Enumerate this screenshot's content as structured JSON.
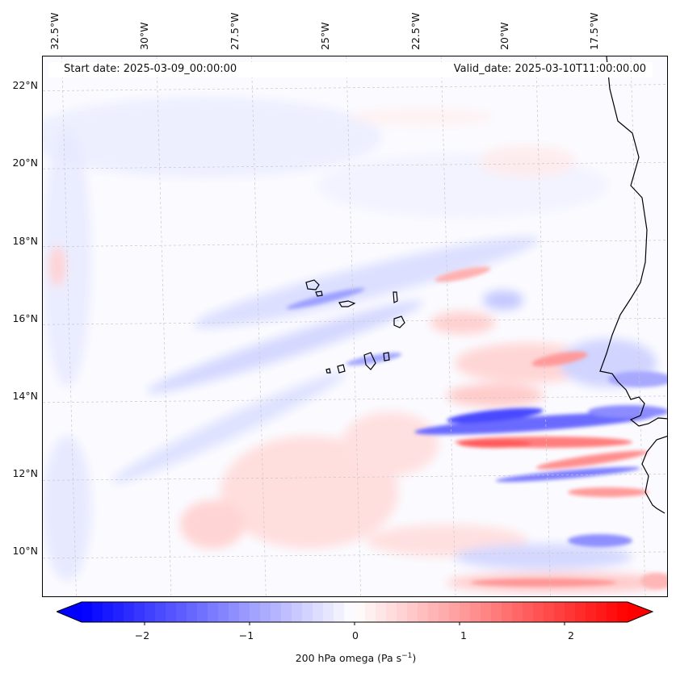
{
  "header": {
    "start_date": "Start date: 2025-03-09_00:00:00",
    "valid_date": "Valid_date: 2025-03-10T11:00:00.00"
  },
  "axes": {
    "longitude_labels": [
      "32.5°W",
      "30°W",
      "27.5°W",
      "25°W",
      "22.5°W",
      "20°W",
      "17.5°W"
    ],
    "latitude_labels": [
      "22°N",
      "20°N",
      "18°N",
      "16°N",
      "14°N",
      "12°N",
      "10°N"
    ]
  },
  "map": {
    "lon_range": [
      -33,
      -16.5
    ],
    "lat_range": [
      8.9,
      22.8
    ],
    "field": "200 hPa omega",
    "gridlines": true,
    "coastline_color": "#000000",
    "features": [
      "Cape Verde islands",
      "West African coastline"
    ]
  },
  "colorbar": {
    "title": "200 hPa omega (Pa s",
    "title_sup": "−1",
    "title_close": ")",
    "tick_labels": [
      "−2",
      "−1",
      "0",
      "1",
      "2"
    ],
    "vmin": -2.6,
    "vmax": 2.6,
    "negative_color": "#0000ff",
    "positive_color": "#ff0000",
    "neutral_color": "#ffffff",
    "extend": "both"
  }
}
